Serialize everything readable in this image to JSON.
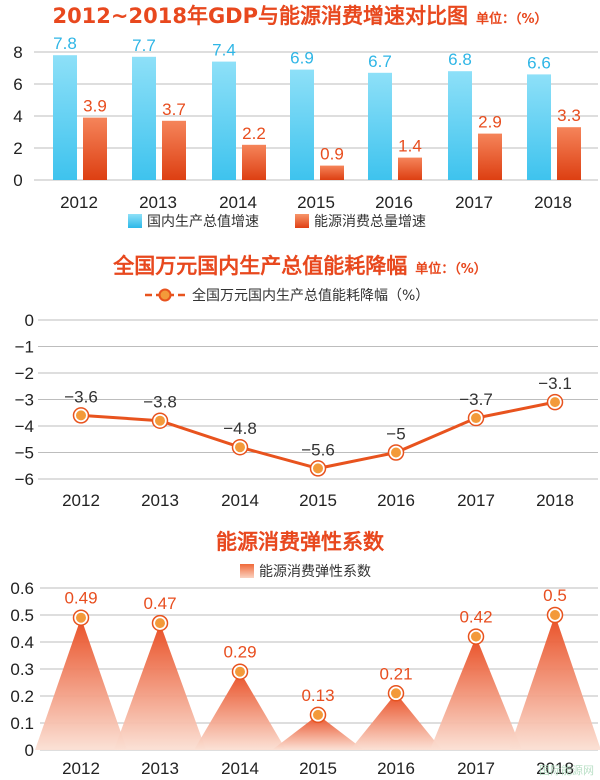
{
  "charts": {
    "gdp_energy": {
      "title": "2012~2018年GDP与能源消费增速对比图",
      "unit": "单位：（%）",
      "legend": [
        "国内生产总值增速",
        "能源消费总量增速"
      ]
    },
    "intensity": {
      "title": "全国万元国内生产总值能耗降幅",
      "unit": "单位：（%）",
      "legend": [
        "全国万元国内生产总值能耗降幅（%）"
      ]
    },
    "elasticity": {
      "title": "能源消费弹性系数",
      "legend": [
        "能源消费弹性系数"
      ]
    }
  },
  "watermark": "国际能源网",
  "colors": {
    "title": "#e8481e",
    "gdp": "#3ec3ee",
    "energy": "#e84e1f",
    "line": "#e8531e",
    "marker_fill": "#f39a3a",
    "grid": "#bdbdbd"
  },
  "chart_data": [
    {
      "type": "bar",
      "title": "2012~2018年GDP与能源消费增速对比图",
      "categories": [
        "2012",
        "2013",
        "2014",
        "2015",
        "2016",
        "2017",
        "2018"
      ],
      "series": [
        {
          "name": "国内生产总值增速",
          "values": [
            7.8,
            7.7,
            7.4,
            6.9,
            6.7,
            6.8,
            6.6
          ]
        },
        {
          "name": "能源消费总量增速",
          "values": [
            3.9,
            3.7,
            2.2,
            0.9,
            1.4,
            2.9,
            3.3
          ]
        }
      ],
      "ylim": [
        0,
        8
      ],
      "yticks": [
        "0",
        "2",
        "4",
        "6",
        "8"
      ],
      "grid": true,
      "legend_position": "bottom"
    },
    {
      "type": "line",
      "title": "全国万元国内生产总值能耗降幅",
      "categories": [
        "2012",
        "2013",
        "2014",
        "2015",
        "2016",
        "2017",
        "2018"
      ],
      "series": [
        {
          "name": "全国万元国内生产总值能耗降幅（%）",
          "values": [
            -3.6,
            -3.8,
            -4.8,
            -5.6,
            -5,
            -3.7,
            -3.1
          ]
        }
      ],
      "value_labels": [
        "−3.6",
        "−3.8",
        "−4.8",
        "−5.6",
        "−5",
        "−3.7",
        "−3.1"
      ],
      "ylim": [
        -6,
        0
      ],
      "yticks": [
        "0",
        "−1",
        "−2",
        "−3",
        "−4",
        "−5",
        "−6"
      ],
      "grid": true,
      "legend_position": "top"
    },
    {
      "type": "area",
      "title": "能源消费弹性系数",
      "categories": [
        "2012",
        "2013",
        "2014",
        "2015",
        "2016",
        "2017",
        "2018"
      ],
      "series": [
        {
          "name": "能源消费弹性系数",
          "values": [
            0.49,
            0.47,
            0.29,
            0.13,
            0.21,
            0.42,
            0.5
          ]
        }
      ],
      "value_labels": [
        "0.49",
        "0.47",
        "0.29",
        "0.13",
        "0.21",
        "0.42",
        "0.5"
      ],
      "ylim": [
        0,
        0.6
      ],
      "yticks": [
        "0",
        "0.1",
        "0.2",
        "0.3",
        "0.4",
        "0.5",
        "0.6"
      ],
      "grid": true,
      "legend_position": "top"
    }
  ]
}
